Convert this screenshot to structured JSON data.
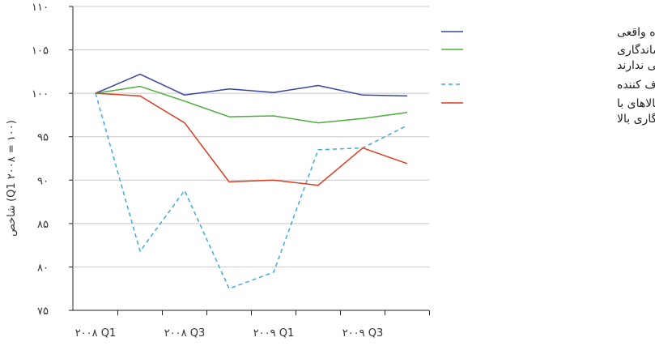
{
  "chart_data": {
    "type": "line",
    "title": "",
    "xlabel": "",
    "ylabel": "شاخص (Q1 ۲۰۰۸ = ۱۰۰)",
    "ylim": [
      75,
      110
    ],
    "yticks": [
      "۷۵",
      "۸۰",
      "۸۵",
      "۹۰",
      "۹۵",
      "۱۰۰",
      "۱۰۵",
      "۱۱۰"
    ],
    "ytick_values": [
      75,
      80,
      85,
      90,
      95,
      100,
      105,
      110
    ],
    "x": [
      "2008 Q1",
      "2008 Q2",
      "2008 Q3",
      "2008 Q4",
      "2009 Q1",
      "2009 Q2",
      "2009 Q3",
      "2009 Q4"
    ],
    "xtick_labels": [
      "۲۰۰۸ Q1",
      "",
      "۲۰۰۸ Q3",
      "",
      "۲۰۰۹ Q1",
      "",
      "۲۰۰۹ Q3",
      ""
    ],
    "legend_position": "right",
    "series": [
      {
        "name": "درآمد قابل استفاده واقعی",
        "color": "#3b44a0",
        "dash": "solid",
        "values": [
          100,
          102.2,
          99.8,
          100.5,
          100.1,
          100.9,
          99.8,
          99.7
        ]
      },
      {
        "name": "مصرف واقعی کالاهایی که ماندگاری بالایی ندارند",
        "color": "#4caf3c",
        "dash": "solid",
        "values": [
          100,
          100.8,
          99.1,
          97.3,
          97.4,
          96.6,
          97.1,
          97.8
        ]
      },
      {
        "name": "شاخص احساسات مصرف کننده",
        "color": "#3fa9e0",
        "dash": "dashed",
        "values": [
          100,
          81.8,
          88.8,
          77.5,
          79.4,
          93.5,
          93.7,
          96.3
        ]
      },
      {
        "name": "مصرف واقعی کالاهای با ماندگاری بالا",
        "color": "#e03a1f",
        "dash": "solid",
        "values": [
          100,
          99.7,
          96.6,
          89.8,
          90,
          89.4,
          93.7,
          91.9
        ]
      }
    ]
  }
}
